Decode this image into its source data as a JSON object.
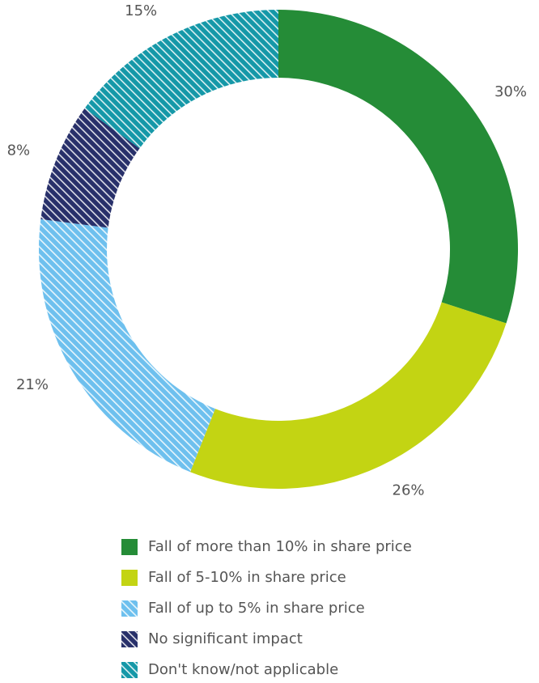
{
  "chart_data": {
    "type": "donut",
    "categories": [
      "Fall of more than 10% in share price",
      "Fall of 5-10% in share price",
      "Fall of up to 5% in share price",
      "No significant impact",
      "Don't know/not applicable"
    ],
    "values": [
      30,
      26,
      21,
      8,
      15
    ],
    "value_labels": [
      "30%",
      "26%",
      "21%",
      "8%",
      "15%"
    ],
    "colors": [
      "#258c37",
      "#c3d413",
      "#6ec0ee",
      "#28306a",
      "#1598a8"
    ],
    "hatched": [
      false,
      false,
      true,
      true,
      true
    ],
    "legend": "bottom"
  }
}
